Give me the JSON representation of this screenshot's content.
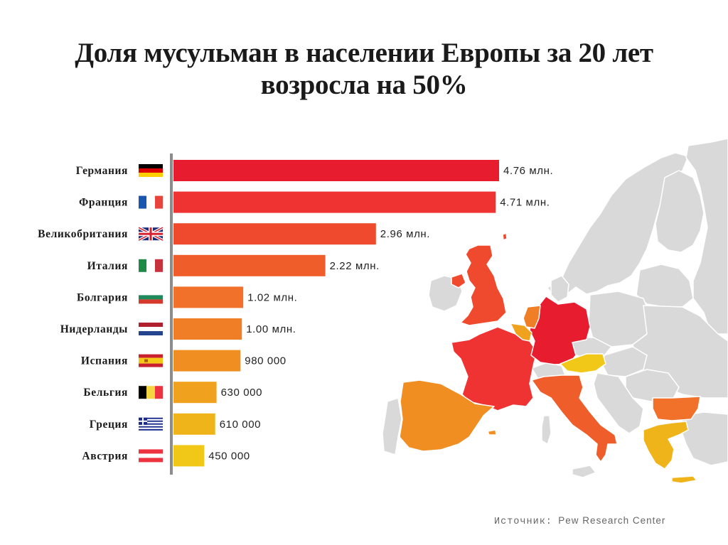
{
  "title": {
    "line1": "Доля мусульман в населении Европы за 20 лет",
    "line2": "возросла на 50%"
  },
  "chart_data": {
    "type": "bar",
    "orientation": "horizontal",
    "title": "Доля мусульман в населении Европы за 20 лет возросла на 50%",
    "xlabel": "",
    "ylabel": "",
    "unit": "people",
    "xlim": [
      0,
      4760000
    ],
    "grid": false,
    "categories": [
      "Германия",
      "Франция",
      "Великобритания",
      "Италия",
      "Болгария",
      "Нидерланды",
      "Испания",
      "Бельгия",
      "Греция",
      "Австрия"
    ],
    "values": [
      4760000,
      4710000,
      2960000,
      2220000,
      1020000,
      1000000,
      980000,
      630000,
      610000,
      450000
    ],
    "value_labels": [
      "4.76 млн.",
      "4.71 млн.",
      "2.96 млн.",
      "2.22 млн.",
      "1.02 млн.",
      "1.00 млн.",
      "980 000",
      "630 000",
      "610 000",
      "450 000"
    ],
    "colors": [
      "#e81c2f",
      "#ef3232",
      "#ef4a2e",
      "#ef5d2a",
      "#f1712a",
      "#f07e26",
      "#f08e22",
      "#f0a21f",
      "#f0b41b",
      "#f1c818"
    ],
    "flags": [
      "germany-flag",
      "france-flag",
      "uk-flag",
      "italy-flag",
      "bulgaria-flag",
      "netherlands-flag",
      "spain-flag",
      "belgium-flag",
      "greece-flag",
      "austria-flag"
    ]
  },
  "map": {
    "description": "Map of Europe with highlighted countries colored to match bars",
    "base_color": "#d9d9d9",
    "highlighted": {
      "germany": "#e81c2f",
      "france": "#ef3232",
      "uk": "#ef4a2e",
      "italy": "#ef5d2a",
      "bulgaria": "#f1712a",
      "netherlands": "#f07e26",
      "spain": "#f08e22",
      "belgium": "#f0a21f",
      "greece": "#f0b41b",
      "austria": "#f1c818"
    }
  },
  "source": {
    "label": "Источник:",
    "value": "Pew Research Center"
  }
}
